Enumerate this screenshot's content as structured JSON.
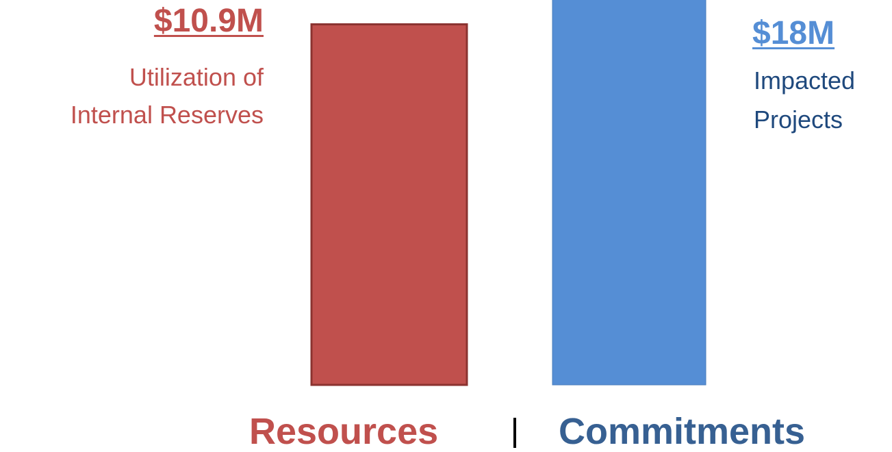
{
  "chart_data": {
    "type": "bar",
    "series": [
      {
        "category": "Resources",
        "value": 10.9,
        "label": "$10.9M",
        "description": [
          "Utilization of",
          "Internal Reserves"
        ],
        "color": "#c0504d",
        "border": "#8b3330"
      },
      {
        "category": "Commitments",
        "value": 18,
        "label": "$18M",
        "description": [
          "Impacted",
          "Projects"
        ],
        "color": "#558ed5",
        "border": "#4a7ebb"
      }
    ],
    "text_colors": {
      "resources": "#c0504d",
      "commitments_amount": "#558ed5",
      "commitments_desc": "#1f497d",
      "commitments_category": "#376092",
      "divider": "#000000"
    },
    "grid": false,
    "axes": false,
    "legend": false
  }
}
